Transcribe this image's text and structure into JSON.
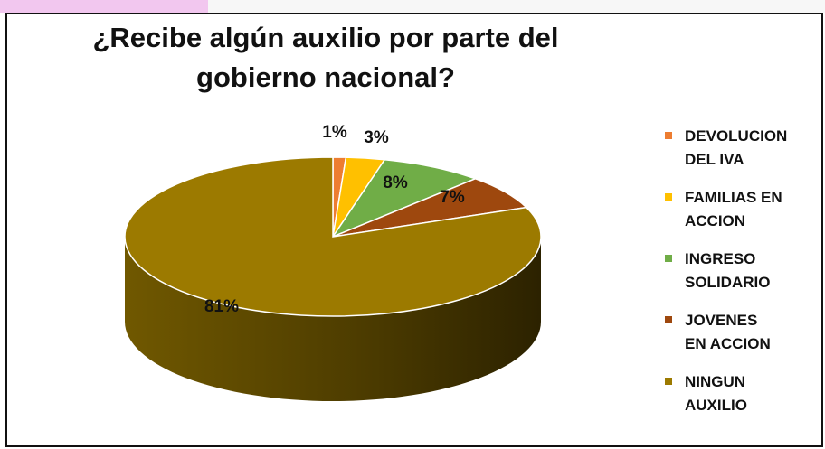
{
  "chart_data": {
    "type": "pie",
    "title": "¿Recibe algún auxilio por parte del gobierno nacional?",
    "slices": [
      {
        "name": "DEVOLUCION\nDEL IVA",
        "value": 1,
        "label": "1%",
        "color": "#ED7D31"
      },
      {
        "name": "FAMILIAS EN\nACCION",
        "value": 3,
        "label": "3%",
        "color": "#FFC000"
      },
      {
        "name": "INGRESO\nSOLIDARIO",
        "value": 8,
        "label": "8%",
        "color": "#70AD47"
      },
      {
        "name": "JOVENES\nEN ACCION",
        "value": 7,
        "label": "7%",
        "color": "#9E480E"
      },
      {
        "name": "NINGUN\nAUXILIO",
        "value": 81,
        "label": "81%",
        "color": "#9C7A00"
      }
    ],
    "legend_position": "right",
    "three_d": true
  }
}
